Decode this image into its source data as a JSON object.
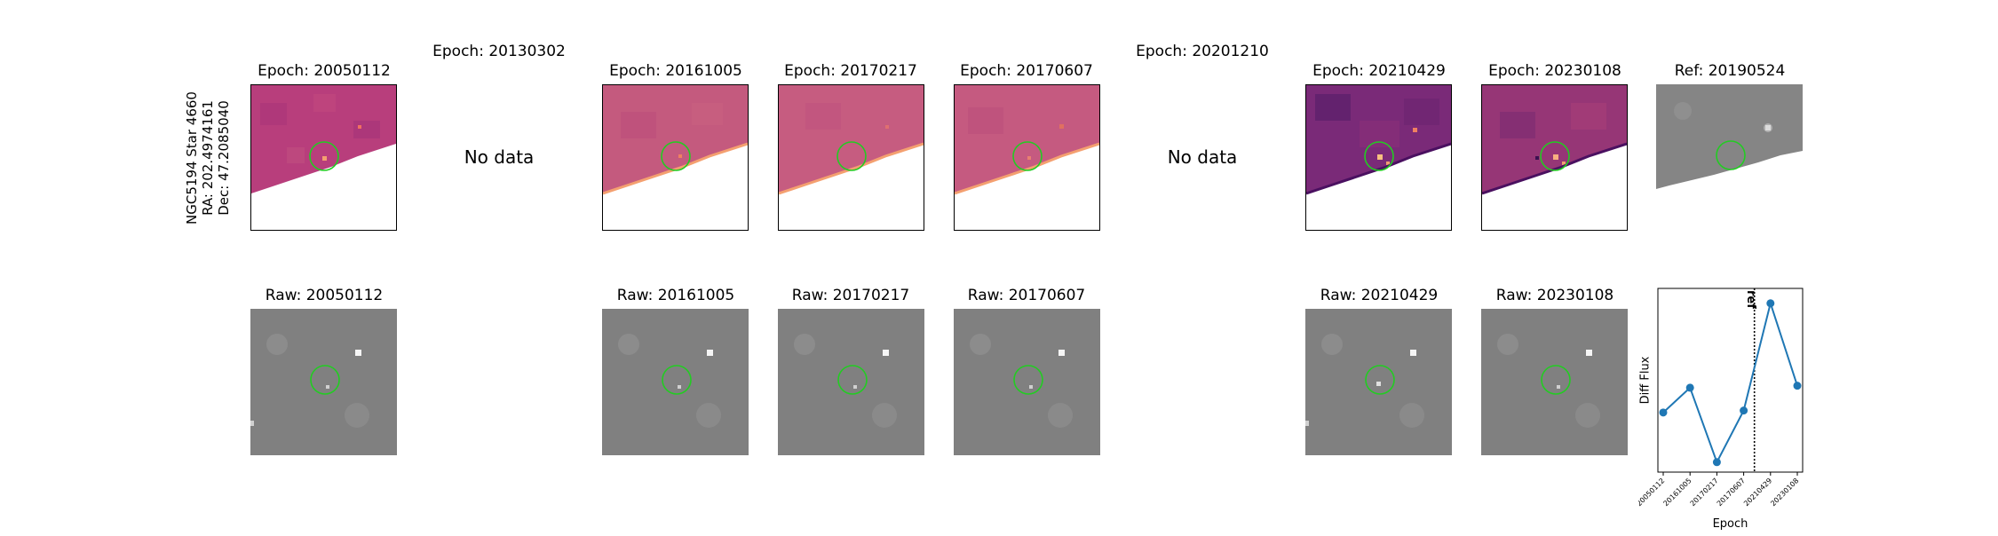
{
  "star_label": {
    "name": "NGC5194 Star 4660",
    "ra": "RA: 202.4974161",
    "dec": "Dec: 47.2085040"
  },
  "diff_panels": [
    {
      "title": "Epoch: 20050112",
      "has_data": true
    },
    {
      "title": "Epoch: 20130302",
      "has_data": false,
      "message": "No data"
    },
    {
      "title": "Epoch: 20161005",
      "has_data": true
    },
    {
      "title": "Epoch: 20170217",
      "has_data": true
    },
    {
      "title": "Epoch: 20170607",
      "has_data": true
    },
    {
      "title": "Epoch: 20201210",
      "has_data": false,
      "message": "No data"
    },
    {
      "title": "Epoch: 20210429",
      "has_data": true
    },
    {
      "title": "Epoch: 20230108",
      "has_data": true
    }
  ],
  "ref_panel": {
    "title": "Ref: 20190524"
  },
  "raw_panels": [
    {
      "title": "Raw: 20050112"
    },
    {
      "title": "Raw: 20161005"
    },
    {
      "title": "Raw: 20170217"
    },
    {
      "title": "Raw: 20170607"
    },
    {
      "title": "Raw: 20210429"
    },
    {
      "title": "Raw: 20230108"
    }
  ],
  "colors": {
    "circle": "#22cc22",
    "line": "#1f77b4",
    "diff_base": "#b03a7a",
    "raw_bg": "#808080"
  },
  "chart_data": {
    "type": "line",
    "title": "",
    "xlabel": "Epoch",
    "ylabel": "Diff Flux",
    "categories": [
      "20050112",
      "20161005",
      "20170217",
      "20170607",
      "20210429",
      "20230108"
    ],
    "values": [
      0.35,
      0.6,
      -0.15,
      0.37,
      1.45,
      0.62
    ],
    "ylim": [
      -0.25,
      1.6
    ],
    "ref_line": {
      "label": "ref",
      "position_between": [
        "20170607",
        "20210429"
      ],
      "style": "dotted"
    },
    "grid": false,
    "marker": "circle"
  }
}
